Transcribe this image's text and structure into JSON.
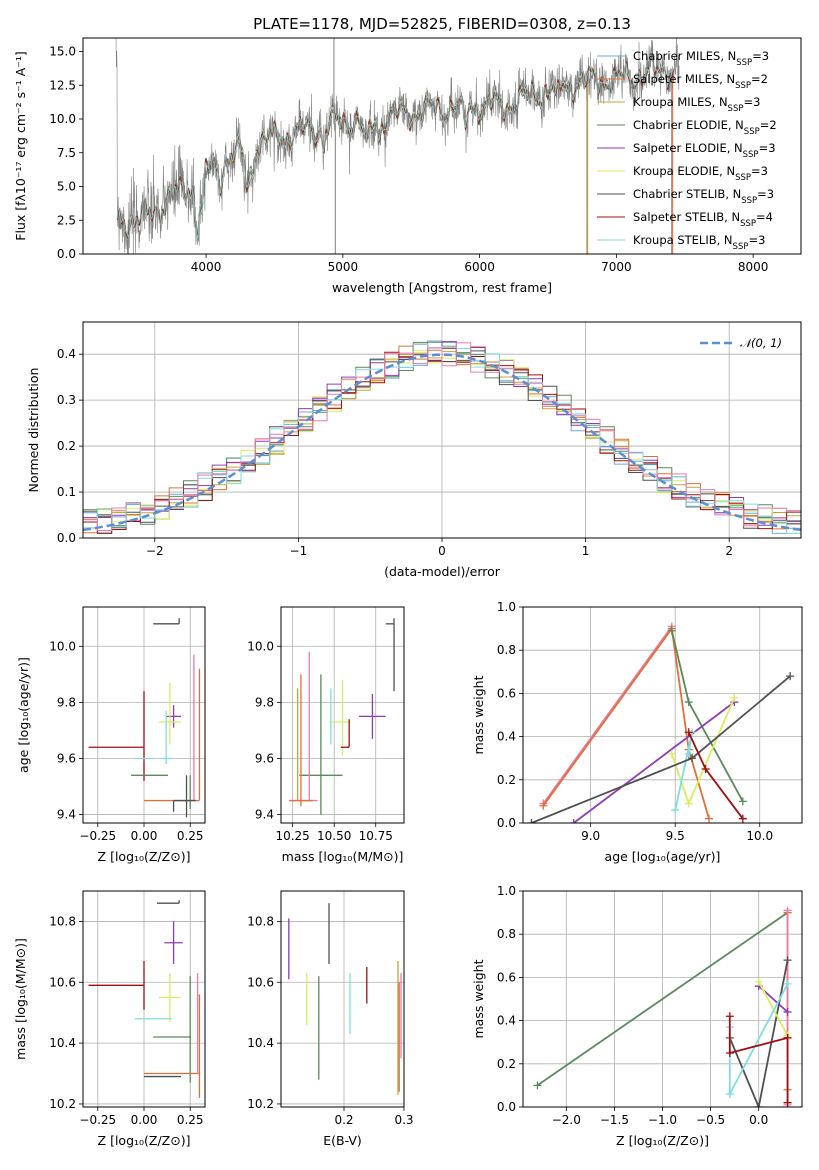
{
  "colors": {
    "chabrier_miles": "#6baed6",
    "salpeter_miles": "#e0703a",
    "kroupa_miles": "#c8a038",
    "chabrier_elodie": "#5a8a5a",
    "salpeter_elodie": "#8e3bb5",
    "kroupa_elodie": "#d8ee60",
    "chabrier_stelib": "#505050",
    "salpeter_stelib": "#a01010",
    "kroupa_stelib": "#80dede",
    "pink": "#e87cae",
    "gauss": "#5b8fd4",
    "spectrum": "#808080"
  },
  "chart_data": [
    {
      "id": "spectrum",
      "type": "line",
      "title": "PLATE=1178, MJD=52825, FIBERID=0308, z=0.13",
      "xlabel": "wavelength [Angstrom, rest frame]",
      "ylabel": "Flux [fλ10⁻¹⁷ erg cm⁻² s⁻¹ A⁻¹]",
      "xlim": [
        3100,
        8350
      ],
      "ylim": [
        0,
        16
      ],
      "xticks": [
        4000,
        5000,
        6000,
        7000,
        8000
      ],
      "yticks": [
        0.0,
        2.5,
        5.0,
        7.5,
        10.0,
        12.5,
        15.0
      ],
      "grid": false,
      "legend": "top-right",
      "legend_entries": [
        "Chabrier MILES, N_SSP=3",
        "Salpeter MILES, N_SSP=2",
        "Kroupa MILES, N_SSP=3",
        "Chabrier ELODIE, N_SSP=2",
        "Salpeter ELODIE, N_SSP=3",
        "Kroupa ELODIE, N_SSP=3",
        "Chabrier STELIB, N_SSP=3",
        "Salpeter STELIB, N_SSP=4",
        "Kroupa STELIB, N_SSP=3"
      ],
      "continuum": {
        "x": [
          3350,
          3500,
          3700,
          3900,
          4000,
          4200,
          4400,
          4600,
          4800,
          5000,
          5200,
          5400,
          5600,
          5800,
          6000,
          6200,
          6400,
          6600,
          6800,
          7000,
          7200,
          7400,
          7600,
          7800,
          8000,
          8200
        ],
        "y": [
          2.6,
          2.4,
          3.8,
          5.2,
          6.0,
          7.3,
          8.3,
          8.8,
          9.3,
          9.8,
          10.1,
          10.3,
          10.6,
          10.9,
          11.0,
          11.1,
          11.8,
          12.4,
          12.9,
          12.9,
          13.3,
          13.7,
          14.1,
          14.6,
          14.8,
          15.0
        ]
      }
    },
    {
      "id": "residuals",
      "type": "histogram",
      "xlabel": "(data-model)/error",
      "ylabel": "Normed distribution",
      "xlim": [
        -2.5,
        2.5
      ],
      "ylim": [
        0,
        0.47
      ],
      "xticks": [
        -2,
        -1,
        0,
        1,
        2
      ],
      "yticks": [
        0.0,
        0.1,
        0.2,
        0.3,
        0.4
      ],
      "grid": true,
      "legend": "top-right",
      "legend_entries": [
        "𝒩(0, 1)"
      ],
      "gaussian": {
        "mean": 0,
        "sigma": 1,
        "name": "𝒩(0, 1)"
      },
      "bin_edges_start": -2.5,
      "bin_width": 0.1
    },
    {
      "id": "age_vs_Z",
      "type": "errorbar",
      "xlabel": "Z [log₁₀(Z/Z⊙)]",
      "ylabel": "age  [log₁₀(age/yr)]",
      "xlim": [
        -0.33,
        0.33
      ],
      "ylim": [
        9.37,
        10.14
      ],
      "xticks": [
        -0.25,
        0.0,
        0.25
      ],
      "xtick_labels": [
        "−0.25",
        "0.00",
        "0.25"
      ],
      "yticks": [
        9.4,
        9.6,
        9.8,
        10.0
      ],
      "grid": true,
      "points": [
        {
          "model": "chabrier_stelib",
          "x": 0.19,
          "y": 10.08,
          "xerr": [
            0.14,
            0.0
          ],
          "yerr": [
            0.0,
            0.02
          ]
        },
        {
          "model": "chabrier_stelib",
          "x": 0.23,
          "y": 9.54,
          "xerr": [
            0.0,
            0.0
          ],
          "yerr": [
            0.15,
            0.0
          ]
        },
        {
          "model": "salpeter_elodie",
          "x": 0.16,
          "y": 9.75,
          "xerr": [
            0.04,
            0.04
          ],
          "yerr": [
            0.04,
            0.04
          ]
        },
        {
          "model": "kroupa_elodie",
          "x": 0.14,
          "y": 9.73,
          "xerr": [
            0.06,
            0.06
          ],
          "yerr": [
            0.08,
            0.14
          ]
        },
        {
          "model": "kroupa_stelib",
          "x": 0.12,
          "y": 9.6,
          "xerr": [
            0.03,
            0.03
          ],
          "yerr": [
            0.02,
            0.17
          ]
        },
        {
          "model": "salpeter_stelib",
          "x": -0.3,
          "y": 9.64,
          "xerr": [
            0.0,
            0.3
          ],
          "yerr": [
            0.0,
            0.0
          ]
        },
        {
          "model": "salpeter_stelib",
          "x": 0.0,
          "y": 9.64,
          "xerr": [
            0.0,
            0.0
          ],
          "yerr": [
            0.12,
            0.2
          ]
        },
        {
          "model": "kroupa_stelib",
          "x": 0.05,
          "y": 9.6,
          "xerr": [
            0.1,
            0.0
          ],
          "yerr": [
            0.0,
            0.0
          ]
        },
        {
          "model": "chabrier_elodie",
          "x": 0.13,
          "y": 9.54,
          "xerr": [
            0.2,
            0.0
          ],
          "yerr": [
            0.0,
            0.0
          ]
        },
        {
          "model": "salpeter_miles",
          "x": 0.3,
          "y": 9.45,
          "xerr": [
            0.3,
            0.0
          ],
          "yerr": [
            0.0,
            0.47
          ]
        },
        {
          "model": "pink",
          "x": 0.27,
          "y": 9.45,
          "xerr": [
            0.0,
            0.0
          ],
          "yerr": [
            0.0,
            0.52
          ]
        },
        {
          "model": "chabrier_elodie",
          "x": 0.25,
          "y": 9.54,
          "xerr": [
            0.0,
            0.0
          ],
          "yerr": [
            0.12,
            0.0
          ]
        },
        {
          "model": "chabrier_stelib",
          "x": 0.16,
          "y": 9.45,
          "xerr": [
            0.0,
            0.12
          ],
          "yerr": [
            0.04,
            0.0
          ]
        }
      ]
    },
    {
      "id": "age_vs_mass",
      "type": "errorbar",
      "xlabel": "mass [log₁₀(M/M⊙)]",
      "ylabel": "",
      "xlim": [
        10.18,
        10.92
      ],
      "ylim": [
        9.37,
        10.14
      ],
      "xticks": [
        10.25,
        10.5,
        10.75
      ],
      "xtick_labels": [
        "10.25",
        "10.50",
        "10.75"
      ],
      "yticks": [
        9.4,
        9.6,
        9.8,
        10.0
      ],
      "grid": true,
      "points": [
        {
          "model": "chabrier_stelib",
          "x": 10.86,
          "y": 10.08,
          "xerr": [
            0.05,
            0.0
          ],
          "yerr": [
            0.24,
            0.02
          ]
        },
        {
          "model": "salpeter_elodie",
          "x": 10.73,
          "y": 9.75,
          "xerr": [
            0.08,
            0.08
          ],
          "yerr": [
            0.08,
            0.08
          ]
        },
        {
          "model": "kroupa_elodie",
          "x": 10.55,
          "y": 9.73,
          "xerr": [
            0.08,
            0.05
          ],
          "yerr": [
            0.12,
            0.15
          ]
        },
        {
          "model": "kroupa_stelib",
          "x": 10.48,
          "y": 9.75,
          "xerr": [
            0.0,
            0.0
          ],
          "yerr": [
            0.1,
            0.1
          ]
        },
        {
          "model": "salpeter_stelib",
          "x": 10.59,
          "y": 9.64,
          "xerr": [
            0.05,
            0.0
          ],
          "yerr": [
            0.0,
            0.1
          ]
        },
        {
          "model": "chabrier_elodie",
          "x": 10.42,
          "y": 9.54,
          "xerr": [
            0.13,
            0.13
          ],
          "yerr": [
            0.14,
            0.36
          ]
        },
        {
          "model": "pink",
          "x": 10.35,
          "y": 9.45,
          "xerr": [
            0.12,
            0.05
          ],
          "yerr": [
            0.0,
            0.53
          ]
        },
        {
          "model": "salpeter_miles",
          "x": 10.3,
          "y": 9.45,
          "xerr": [
            0.07,
            0.07
          ],
          "yerr": [
            0.02,
            0.45
          ]
        },
        {
          "model": "kroupa_miles",
          "x": 10.28,
          "y": 9.45,
          "xerr": [
            0.0,
            0.0
          ],
          "yerr": [
            0.0,
            0.4
          ]
        }
      ]
    },
    {
      "id": "massweight_vs_age",
      "type": "line",
      "xlabel": "age  [log₁₀(age/yr)]",
      "ylabel": "mass weight",
      "xlim": [
        8.6,
        10.25
      ],
      "ylim": [
        0,
        1.0
      ],
      "xticks": [
        9.0,
        9.5,
        10.0
      ],
      "yticks": [
        0.0,
        0.2,
        0.4,
        0.6,
        0.8,
        1.0
      ],
      "grid": true,
      "series": [
        {
          "model": "pink",
          "x": [
            8.72,
            9.48
          ],
          "y": [
            0.09,
            0.91
          ]
        },
        {
          "model": "salpeter_miles",
          "x": [
            8.72,
            9.48,
            9.58,
            9.7
          ],
          "y": [
            0.08,
            0.9,
            0.34,
            0.02
          ]
        },
        {
          "model": "chabrier_elodie",
          "x": [
            9.48,
            9.58,
            9.9
          ],
          "y": [
            0.89,
            0.56,
            0.1
          ]
        },
        {
          "model": "salpeter_elodie",
          "x": [
            8.9,
            9.85
          ],
          "y": [
            0.0,
            0.56
          ]
        },
        {
          "model": "kroupa_elodie",
          "x": [
            9.48,
            9.58,
            9.85
          ],
          "y": [
            0.32,
            0.09,
            0.58
          ]
        },
        {
          "model": "kroupa_stelib",
          "x": [
            9.5,
            9.6,
            9.58
          ],
          "y": [
            0.06,
            0.42,
            0.32
          ]
        },
        {
          "model": "chabrier_stelib",
          "x": [
            8.65,
            9.6,
            10.18
          ],
          "y": [
            0.0,
            0.3,
            0.68
          ]
        },
        {
          "model": "salpeter_stelib",
          "x": [
            9.58,
            9.68,
            9.9
          ],
          "y": [
            0.42,
            0.25,
            0.02
          ]
        }
      ]
    },
    {
      "id": "mass_vs_Z",
      "type": "errorbar",
      "xlabel": "Z [log₁₀(Z/Z⊙)]",
      "ylabel": "mass [log₁₀(M/M⊙)]",
      "xlim": [
        -0.33,
        0.33
      ],
      "ylim": [
        10.19,
        10.9
      ],
      "xticks": [
        -0.25,
        0.0,
        0.25
      ],
      "xtick_labels": [
        "−0.25",
        "0.00",
        "0.25"
      ],
      "yticks": [
        10.2,
        10.4,
        10.6,
        10.8
      ],
      "grid": true,
      "points": [
        {
          "model": "chabrier_stelib",
          "x": 0.19,
          "y": 10.86,
          "xerr": [
            0.12,
            0.0
          ],
          "yerr": [
            0.0,
            0.01
          ]
        },
        {
          "model": "salpeter_elodie",
          "x": 0.16,
          "y": 10.73,
          "xerr": [
            0.05,
            0.05
          ],
          "yerr": [
            0.07,
            0.07
          ]
        },
        {
          "model": "kroupa_elodie",
          "x": 0.14,
          "y": 10.55,
          "xerr": [
            0.06,
            0.06
          ],
          "yerr": [
            0.08,
            0.08
          ]
        },
        {
          "model": "salpeter_stelib",
          "x": -0.3,
          "y": 10.59,
          "xerr": [
            0.0,
            0.3
          ],
          "yerr": [
            0.0,
            0.0
          ]
        },
        {
          "model": "salpeter_stelib",
          "x": 0.0,
          "y": 10.59,
          "xerr": [
            0.0,
            0.0
          ],
          "yerr": [
            0.08,
            0.08
          ]
        },
        {
          "model": "kroupa_stelib",
          "x": 0.05,
          "y": 10.48,
          "xerr": [
            0.1,
            0.1
          ],
          "yerr": [
            0.0,
            0.0
          ]
        },
        {
          "model": "chabrier_elodie",
          "x": 0.05,
          "y": 10.42,
          "xerr": [
            0.0,
            0.2
          ],
          "yerr": [
            0.0,
            0.0
          ]
        },
        {
          "model": "chabrier_elodie",
          "x": 0.25,
          "y": 10.42,
          "xerr": [
            0.0,
            0.0
          ],
          "yerr": [
            0.15,
            0.2
          ]
        },
        {
          "model": "salpeter_miles",
          "x": 0.3,
          "y": 10.3,
          "xerr": [
            0.3,
            0.0
          ],
          "yerr": [
            0.08,
            0.26
          ]
        },
        {
          "model": "pink",
          "x": 0.29,
          "y": 10.3,
          "xerr": [
            0.0,
            0.0
          ],
          "yerr": [
            0.0,
            0.33
          ]
        },
        {
          "model": "chabrier_stelib",
          "x": 0.2,
          "y": 10.29,
          "xerr": [
            0.2,
            0.0
          ],
          "yerr": [
            0.0,
            0.0
          ]
        }
      ]
    },
    {
      "id": "mass_vs_ebv",
      "type": "errorbar",
      "xlabel": "E(B-V)",
      "ylabel": "",
      "xlim": [
        0.095,
        0.3
      ],
      "ylim": [
        10.19,
        10.9
      ],
      "xticks": [
        0.2,
        0.3
      ],
      "xtick_labels": [
        "0.2",
        "0.3"
      ],
      "yticks": [
        10.2,
        10.4,
        10.6,
        10.8
      ],
      "grid": true,
      "points": [
        {
          "model": "salpeter_elodie",
          "x": 0.108,
          "y": 10.71,
          "xerr": [
            0,
            0
          ],
          "yerr": [
            0.1,
            0.1
          ]
        },
        {
          "model": "kroupa_elodie",
          "x": 0.138,
          "y": 10.55,
          "xerr": [
            0,
            0
          ],
          "yerr": [
            0.09,
            0.08
          ]
        },
        {
          "model": "chabrier_elodie",
          "x": 0.158,
          "y": 10.45,
          "xerr": [
            0,
            0
          ],
          "yerr": [
            0.17,
            0.17
          ]
        },
        {
          "model": "chabrier_stelib",
          "x": 0.175,
          "y": 10.76,
          "xerr": [
            0,
            0
          ],
          "yerr": [
            0.1,
            0.1
          ]
        },
        {
          "model": "kroupa_stelib",
          "x": 0.21,
          "y": 10.53,
          "xerr": [
            0,
            0
          ],
          "yerr": [
            0.1,
            0.1
          ]
        },
        {
          "model": "salpeter_stelib",
          "x": 0.238,
          "y": 10.59,
          "xerr": [
            0,
            0
          ],
          "yerr": [
            0.06,
            0.06
          ]
        },
        {
          "model": "pink",
          "x": 0.295,
          "y": 10.49,
          "xerr": [
            0,
            0
          ],
          "yerr": [
            0.14,
            0.14
          ]
        },
        {
          "model": "salpeter_miles",
          "x": 0.292,
          "y": 10.42,
          "xerr": [
            0,
            0
          ],
          "yerr": [
            0.18,
            0.18
          ]
        },
        {
          "model": "kroupa_miles",
          "x": 0.29,
          "y": 10.45,
          "xerr": [
            0,
            0
          ],
          "yerr": [
            0.22,
            0.22
          ]
        }
      ]
    },
    {
      "id": "massweight_vs_Z",
      "type": "line",
      "xlabel": "Z [log₁₀(Z/Z⊙)]",
      "ylabel": "mass weight",
      "xlim": [
        -2.45,
        0.45
      ],
      "ylim": [
        0,
        1.0
      ],
      "xticks": [
        -2.0,
        -1.5,
        -1.0,
        -0.5,
        0.0
      ],
      "xtick_labels": [
        "−2.0",
        "−1.5",
        "−1.0",
        "−0.5",
        "0.0"
      ],
      "yticks": [
        0.0,
        0.2,
        0.4,
        0.6,
        0.8,
        1.0
      ],
      "grid": true,
      "series": [
        {
          "model": "chabrier_elodie",
          "x": [
            -2.3,
            0.3
          ],
          "y": [
            0.1,
            0.9
          ]
        },
        {
          "model": "salpeter_miles",
          "x": [
            0.3,
            0.3
          ],
          "y": [
            0.9,
            0.08
          ]
        },
        {
          "model": "pink",
          "x": [
            0.3,
            0.3
          ],
          "y": [
            0.91,
            0.01
          ]
        },
        {
          "model": "chabrier_stelib",
          "x": [
            -0.3,
            0.0,
            0.3
          ],
          "y": [
            0.32,
            0.0,
            0.68
          ]
        },
        {
          "model": "salpeter_elodie",
          "x": [
            0.0,
            0.3
          ],
          "y": [
            0.56,
            0.44
          ]
        },
        {
          "model": "kroupa_elodie",
          "x": [
            0.0,
            0.3
          ],
          "y": [
            0.58,
            0.33
          ]
        },
        {
          "model": "kroupa_stelib",
          "x": [
            -0.3,
            -0.3,
            0.3
          ],
          "y": [
            0.37,
            0.06,
            0.57
          ]
        },
        {
          "model": "salpeter_stelib",
          "x": [
            -0.3,
            -0.3,
            0.3
          ],
          "y": [
            0.42,
            0.25,
            0.32
          ]
        },
        {
          "model": "salpeter_stelib",
          "x": [
            0.3,
            0.3
          ],
          "y": [
            0.32,
            0.02
          ]
        }
      ]
    }
  ]
}
